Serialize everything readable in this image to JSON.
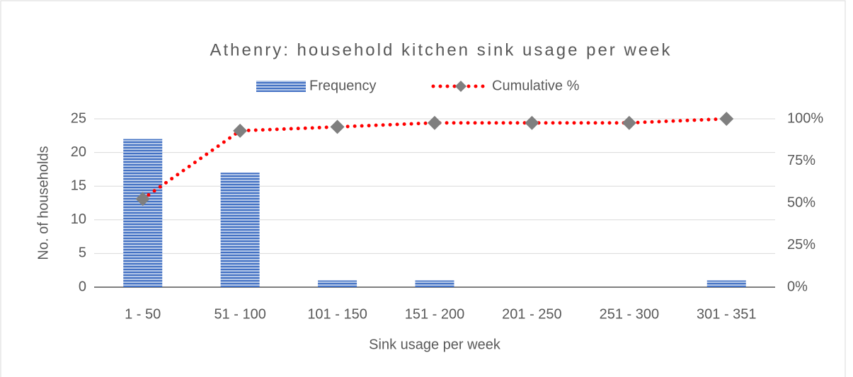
{
  "chart_data": {
    "type": "combo",
    "title": "Athenry: household kitchen sink usage per week",
    "x_label": "Sink usage per week",
    "y_label": "No. of households",
    "categories": [
      "1 - 50",
      "51 - 100",
      "101 - 150",
      "151 - 200",
      "201 - 250",
      "251 - 300",
      "301 - 351"
    ],
    "series": [
      {
        "name": "Frequency",
        "type": "bar",
        "color": "#4472c4",
        "values": [
          22,
          17,
          1,
          1,
          0,
          0,
          1
        ]
      },
      {
        "name": "Cumulative %",
        "type": "line",
        "axis": "y2",
        "color": "#ff0000",
        "marker_color": "#7f7f7f",
        "values": [
          52.4,
          92.9,
          95.2,
          97.6,
          97.6,
          97.6,
          100
        ]
      }
    ],
    "ylim": [
      0,
      25
    ],
    "yticks": [
      0,
      5,
      10,
      15,
      20,
      25
    ],
    "y2lim": [
      0,
      100
    ],
    "y2ticks": [
      {
        "value": 0,
        "label": "0%"
      },
      {
        "value": 25,
        "label": "25%"
      },
      {
        "value": 50,
        "label": "50%"
      },
      {
        "value": 75,
        "label": "75%"
      },
      {
        "value": 100,
        "label": "100%"
      }
    ],
    "grid": true,
    "legend": "top"
  }
}
